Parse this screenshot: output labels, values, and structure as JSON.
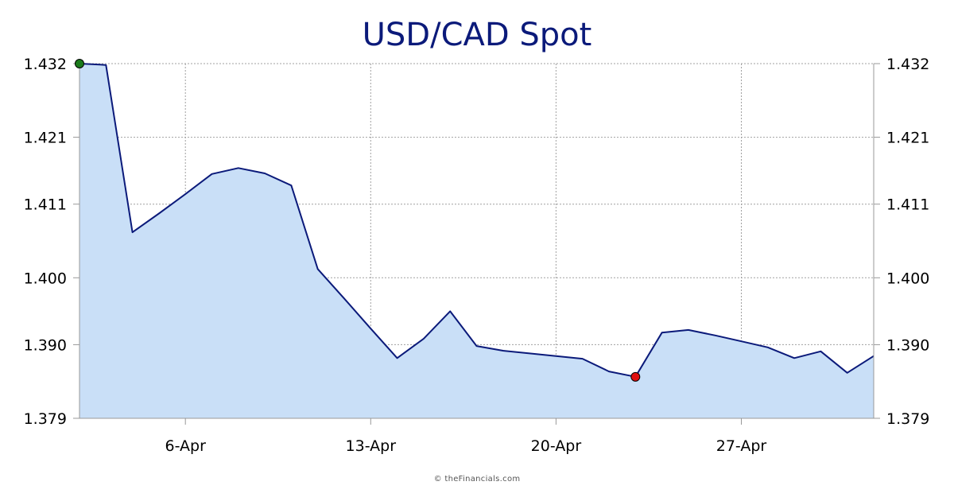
{
  "chart_data": {
    "type": "area",
    "title": "USD/CAD Spot",
    "xlabel": "",
    "ylabel": "",
    "x": [
      "2026-04-02",
      "2026-04-03",
      "2026-04-04",
      "2026-04-05",
      "2026-04-06",
      "2026-04-07",
      "2026-04-08",
      "2026-04-09",
      "2026-04-10",
      "2026-04-11",
      "2026-04-12",
      "2026-04-13",
      "2026-04-14",
      "2026-04-15",
      "2026-04-16",
      "2026-04-17",
      "2026-04-18",
      "2026-04-19",
      "2026-04-20",
      "2026-04-21",
      "2026-04-22",
      "2026-04-23",
      "2026-04-24",
      "2026-04-25",
      "2026-04-26",
      "2026-04-27",
      "2026-04-28",
      "2026-04-29",
      "2026-04-30",
      "2026-05-01",
      "2026-05-02"
    ],
    "values": [
      1.432,
      1.4318,
      1.4068,
      1.4096,
      1.4125,
      1.4155,
      1.4164,
      1.4156,
      1.4138,
      1.4013,
      1.3969,
      1.3924,
      1.388,
      1.3909,
      1.395,
      1.3898,
      1.3891,
      1.3887,
      1.3883,
      1.3879,
      1.386,
      1.3852,
      1.3918,
      1.3922,
      1.3914,
      1.3905,
      1.3896,
      1.388,
      1.389,
      1.3858,
      1.3883
    ],
    "ylim": [
      1.379,
      1.432
    ],
    "yticks": [
      "1.379",
      "1.390",
      "1.400",
      "1.411",
      "1.421",
      "1.432"
    ],
    "xticks": [
      "6-Apr",
      "13-Apr",
      "20-Apr",
      "27-Apr"
    ],
    "colors": {
      "line": "#0b1a7a",
      "fill": "#c9dff7",
      "grid": "#a0a0a0",
      "max_marker": "#1a7a1a",
      "min_marker": "#e01010"
    },
    "grid": true,
    "legend": "none"
  },
  "credit": "© theFinancials.com"
}
